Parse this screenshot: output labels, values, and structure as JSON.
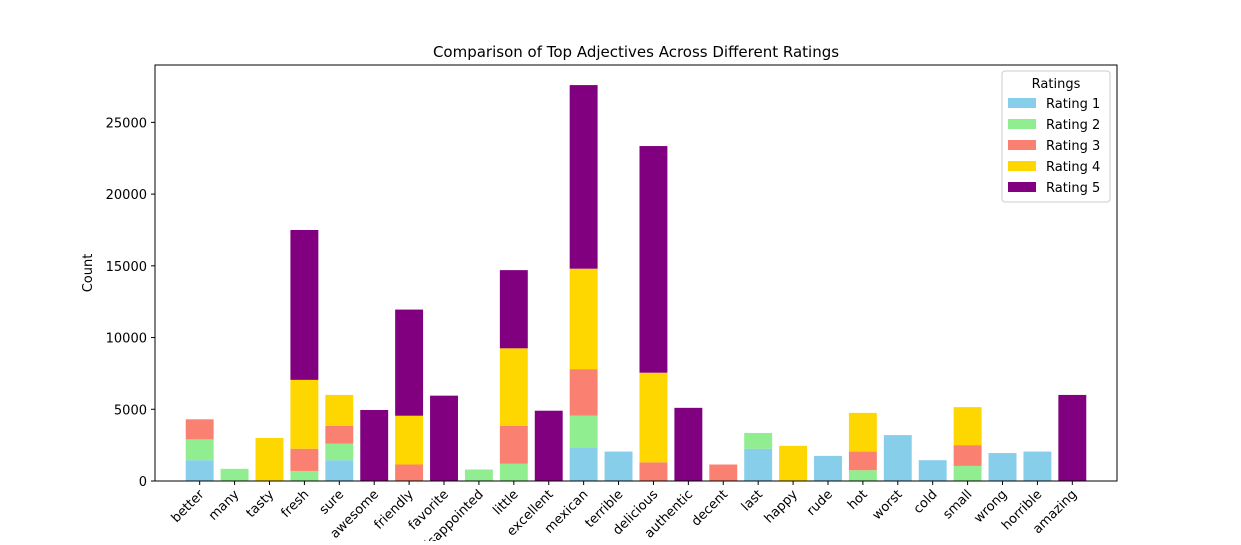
{
  "chart_data": {
    "type": "bar",
    "stacked": true,
    "title": "Comparison of Top Adjectives Across Different Ratings",
    "xlabel": "",
    "ylabel": "Count",
    "ylim": [
      0,
      29000
    ],
    "yticks": [
      0,
      5000,
      10000,
      15000,
      20000,
      25000
    ],
    "grid": false,
    "legend": {
      "title": "Ratings",
      "placement": "top-right"
    },
    "categories": [
      "better",
      "many",
      "tasty",
      "fresh",
      "sure",
      "awesome",
      "friendly",
      "favorite",
      "disappointed",
      "little",
      "excellent",
      "mexican",
      "terrible",
      "delicious",
      "authentic",
      "decent",
      "last",
      "happy",
      "rude",
      "hot",
      "worst",
      "cold",
      "small",
      "wrong",
      "horrible",
      "amazing"
    ],
    "series": [
      {
        "name": "Rating 1",
        "color": "#87ceeb",
        "values": [
          1450,
          0,
          0,
          0,
          1450,
          0,
          0,
          0,
          0,
          0,
          0,
          2300,
          2050,
          0,
          0,
          0,
          2250,
          0,
          1750,
          0,
          3200,
          1450,
          0,
          1950,
          2050,
          0
        ]
      },
      {
        "name": "Rating 2",
        "color": "#90ee90",
        "values": [
          1450,
          850,
          0,
          700,
          1150,
          0,
          0,
          0,
          800,
          1200,
          0,
          2250,
          0,
          0,
          0,
          0,
          1100,
          0,
          0,
          750,
          0,
          0,
          1050,
          0,
          0,
          0
        ]
      },
      {
        "name": "Rating 3",
        "color": "#fa8072",
        "values": [
          1400,
          0,
          0,
          1550,
          1250,
          0,
          1150,
          0,
          0,
          2650,
          0,
          3250,
          0,
          1300,
          0,
          1150,
          0,
          0,
          0,
          1300,
          0,
          0,
          1450,
          0,
          0,
          0
        ]
      },
      {
        "name": "Rating 4",
        "color": "#ffd700",
        "values": [
          0,
          0,
          3000,
          4800,
          2150,
          0,
          3400,
          0,
          0,
          5400,
          0,
          7000,
          0,
          6250,
          0,
          0,
          0,
          2450,
          0,
          2700,
          0,
          0,
          2650,
          0,
          0,
          0
        ]
      },
      {
        "name": "Rating 5",
        "color": "#800080",
        "values": [
          0,
          0,
          0,
          10450,
          0,
          4950,
          7400,
          5950,
          0,
          5450,
          4900,
          12800,
          0,
          15800,
          5100,
          0,
          0,
          0,
          0,
          0,
          0,
          0,
          0,
          0,
          0,
          6000
        ]
      }
    ]
  }
}
